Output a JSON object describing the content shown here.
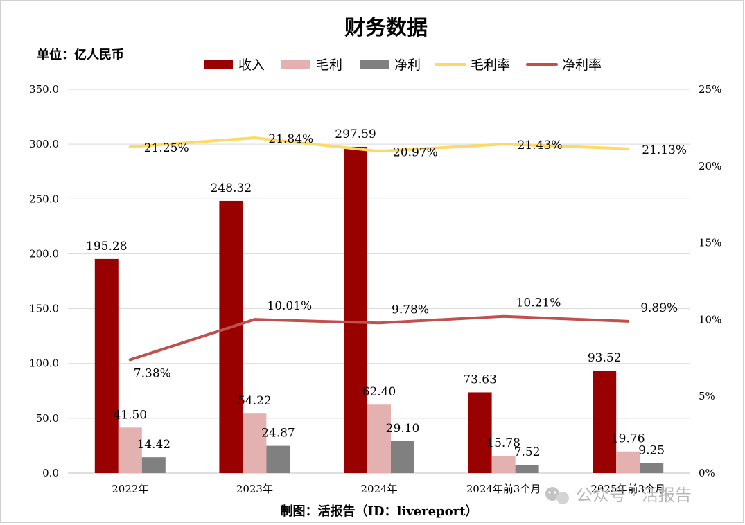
{
  "chart_data": {
    "type": "bar",
    "title": "财务数据",
    "unit_label": "单位：亿人民币",
    "credit": "制图：活报告（ID：livereport）",
    "categories": [
      "2022年",
      "2023年",
      "2024年",
      "2024年前3个月",
      "2025年前3个月"
    ],
    "series": [
      {
        "name": "收入",
        "type": "bar",
        "axis": "left",
        "color": "#990000",
        "values": [
          195.28,
          248.32,
          297.59,
          73.63,
          93.52
        ],
        "labels": [
          "195.28",
          "248.32",
          "297.59",
          "73.63",
          "93.52"
        ]
      },
      {
        "name": "毛利",
        "type": "bar",
        "axis": "left",
        "color": "#e4b1b1",
        "values": [
          41.5,
          54.22,
          62.4,
          15.78,
          19.76
        ],
        "labels": [
          "41.50",
          "54.22",
          "62.40",
          "15.78",
          "19.76"
        ]
      },
      {
        "name": "净利",
        "type": "bar",
        "axis": "left",
        "color": "#808080",
        "values": [
          14.42,
          24.87,
          29.1,
          7.52,
          9.25
        ],
        "labels": [
          "14.42",
          "24.87",
          "29.10",
          "7.52",
          "9.25"
        ]
      },
      {
        "name": "毛利率",
        "type": "line",
        "axis": "right",
        "color": "#ffd966",
        "values": [
          21.25,
          21.84,
          20.97,
          21.43,
          21.13
        ],
        "labels": [
          "21.25%",
          "21.84%",
          "20.97%",
          "21.43%",
          "21.13%"
        ]
      },
      {
        "name": "净利率",
        "type": "line",
        "axis": "right",
        "color": "#c0504d",
        "values": [
          7.38,
          10.01,
          9.78,
          10.21,
          9.89
        ],
        "labels": [
          "7.38%",
          "10.01%",
          "9.78%",
          "10.21%",
          "9.89%"
        ]
      }
    ],
    "y_left": {
      "min": 0,
      "max": 350,
      "ticks": [
        "0.0",
        "50.0",
        "100.0",
        "150.0",
        "200.0",
        "250.0",
        "300.0",
        "350.0"
      ]
    },
    "y_right": {
      "min": 0,
      "max": 25,
      "ticks": [
        "0%",
        "5%",
        "10%",
        "15%",
        "20%",
        "25%"
      ]
    },
    "grid": true,
    "legend_position": "top"
  },
  "watermark": {
    "text": "公众号 · 活报告",
    "icon": "wechat-icon"
  }
}
